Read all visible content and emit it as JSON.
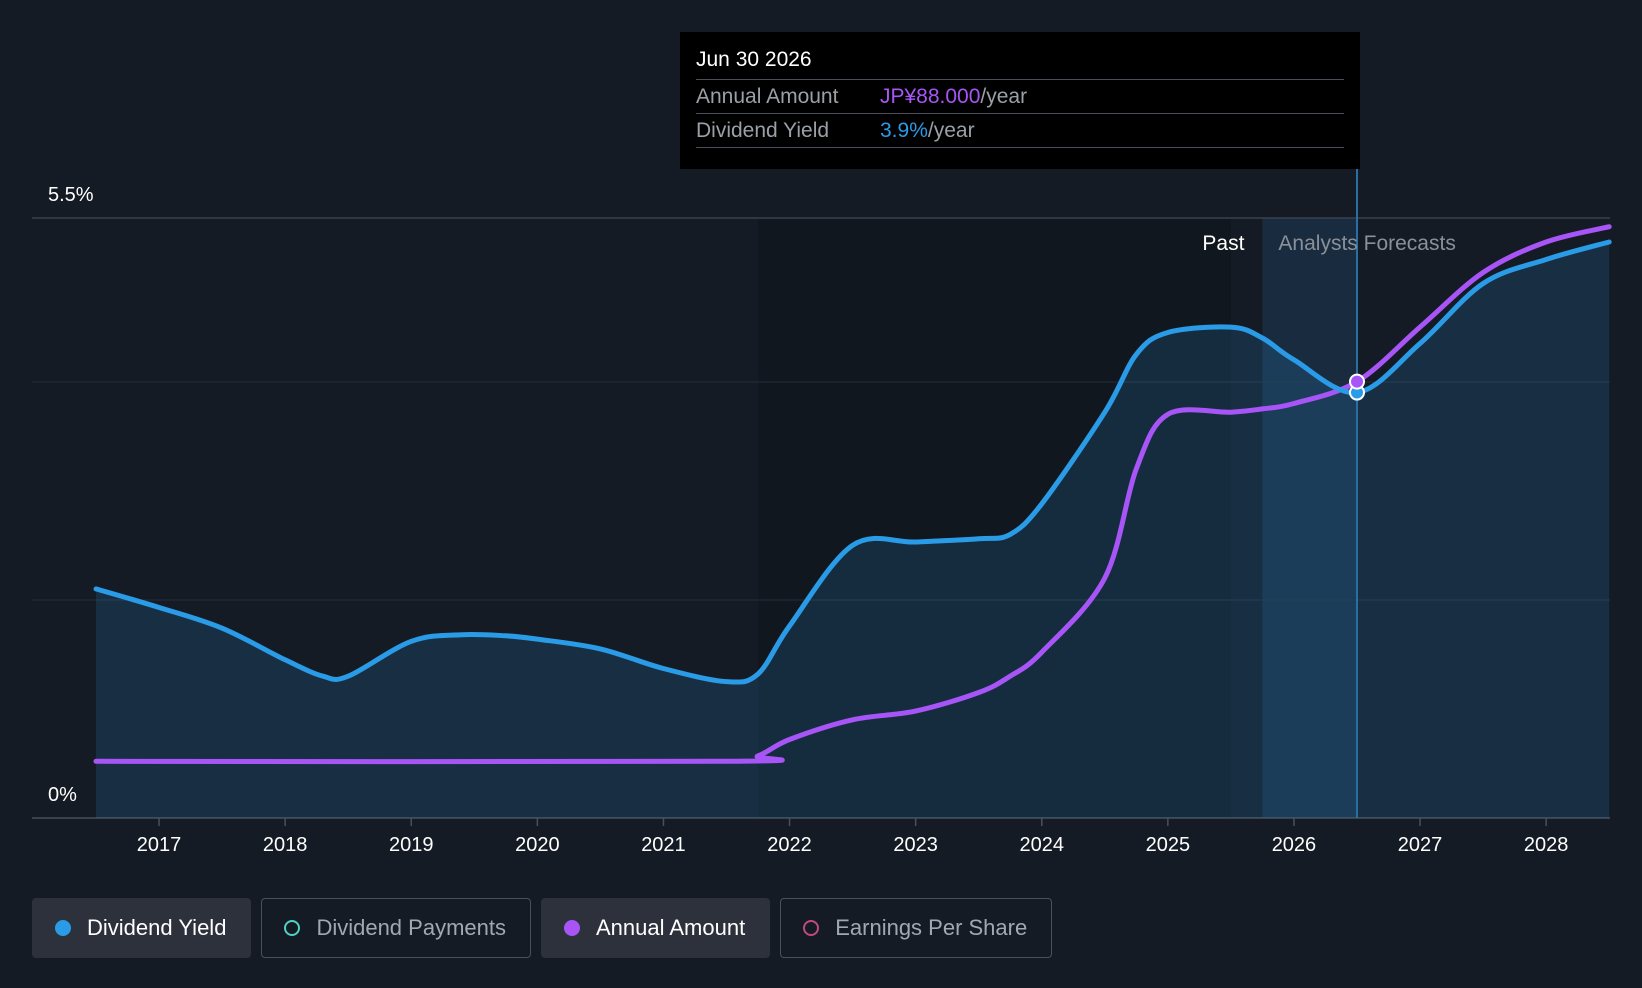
{
  "chart_data": {
    "type": "area",
    "title": "",
    "y_axis": {
      "min": 0,
      "max": 5.5,
      "top_label": "5.5%",
      "bottom_label": "0%"
    },
    "x_ticks": [
      "2017",
      "2018",
      "2019",
      "2020",
      "2021",
      "2022",
      "2023",
      "2024",
      "2025",
      "2026",
      "2027",
      "2028"
    ],
    "x_range": [
      2016.5,
      2028.5
    ],
    "past_label": "Past",
    "forecast_label": "Analysts Forecasts",
    "forecast_start": 2025.75,
    "selected_x": 2026.5,
    "series": [
      {
        "name": "Dividend Yield",
        "color": "#2a9be6",
        "points": [
          [
            2016.5,
            2.1
          ],
          [
            2017.0,
            1.93
          ],
          [
            2017.5,
            1.74
          ],
          [
            2018.0,
            1.45
          ],
          [
            2018.3,
            1.3
          ],
          [
            2018.5,
            1.3
          ],
          [
            2019.0,
            1.62
          ],
          [
            2019.4,
            1.68
          ],
          [
            2019.75,
            1.67
          ],
          [
            2020.0,
            1.64
          ],
          [
            2020.5,
            1.55
          ],
          [
            2021.0,
            1.37
          ],
          [
            2021.5,
            1.25
          ],
          [
            2021.75,
            1.32
          ],
          [
            2022.0,
            1.76
          ],
          [
            2022.5,
            2.5
          ],
          [
            2023.0,
            2.53
          ],
          [
            2023.5,
            2.56
          ],
          [
            2023.75,
            2.6
          ],
          [
            2024.0,
            2.88
          ],
          [
            2024.5,
            3.72
          ],
          [
            2024.75,
            4.25
          ],
          [
            2025.0,
            4.45
          ],
          [
            2025.5,
            4.5
          ],
          [
            2025.75,
            4.4
          ],
          [
            2026.0,
            4.2
          ],
          [
            2026.5,
            3.9
          ],
          [
            2027.0,
            4.35
          ],
          [
            2027.5,
            4.9
          ],
          [
            2028.0,
            5.12
          ],
          [
            2028.5,
            5.28
          ]
        ]
      },
      {
        "name": "Annual Amount",
        "color": "#a855f7",
        "points": [
          [
            2016.5,
            0.52
          ],
          [
            2021.5,
            0.52
          ],
          [
            2021.75,
            0.57
          ],
          [
            2022.0,
            0.72
          ],
          [
            2022.5,
            0.9
          ],
          [
            2023.0,
            0.98
          ],
          [
            2023.5,
            1.15
          ],
          [
            2023.75,
            1.3
          ],
          [
            2024.0,
            1.52
          ],
          [
            2024.5,
            2.2
          ],
          [
            2024.75,
            3.2
          ],
          [
            2025.0,
            3.7
          ],
          [
            2025.5,
            3.72
          ],
          [
            2025.75,
            3.75
          ],
          [
            2026.0,
            3.8
          ],
          [
            2026.5,
            4.0
          ],
          [
            2027.0,
            4.5
          ],
          [
            2027.5,
            5.0
          ],
          [
            2028.0,
            5.28
          ],
          [
            2028.5,
            5.42
          ]
        ]
      }
    ]
  },
  "tooltip": {
    "date": "Jun 30 2026",
    "annual_label": "Annual Amount",
    "annual_value": "JP¥88.000",
    "annual_unit": "/year",
    "yield_label": "Dividend Yield",
    "yield_value": "3.9%",
    "yield_unit": "/year"
  },
  "legend": {
    "dividend_yield": "Dividend Yield",
    "dividend_payments": "Dividend Payments",
    "annual_amount": "Annual Amount",
    "earnings_per_share": "Earnings Per Share"
  }
}
